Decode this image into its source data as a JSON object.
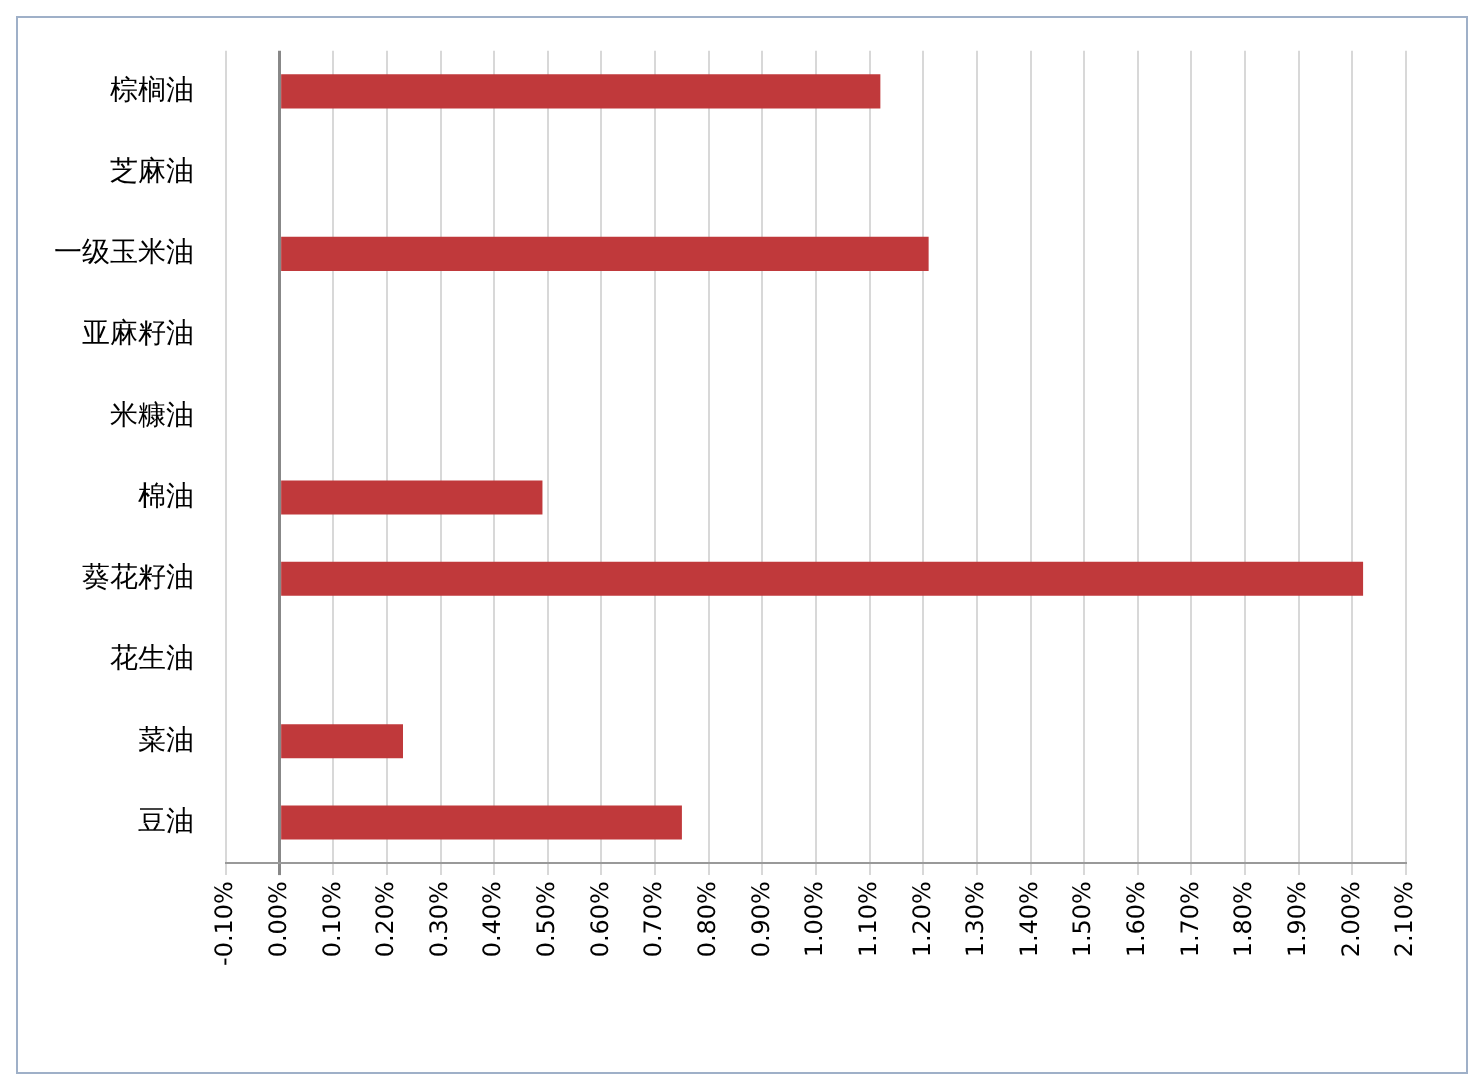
{
  "chart_data": {
    "type": "bar",
    "orientation": "horizontal",
    "categories": [
      "棕榈油",
      "芝麻油",
      "一级玉米油",
      "亚麻籽油",
      "米糠油",
      "棉油",
      "葵花籽油",
      "花生油",
      "菜油",
      "豆油"
    ],
    "values": [
      1.12,
      0,
      1.21,
      0,
      0,
      0.49,
      2.02,
      0,
      0.23,
      0.75
    ],
    "color": "#c0393b",
    "xlim": [
      -0.1,
      2.1
    ],
    "xticks": [
      {
        "value": -0.1,
        "label": "-0.10%"
      },
      {
        "value": 0,
        "label": "0.00%"
      },
      {
        "value": 0.1,
        "label": "0.10%"
      },
      {
        "value": 0.2,
        "label": "0.20%"
      },
      {
        "value": 0.3,
        "label": "0.30%"
      },
      {
        "value": 0.4,
        "label": "0.40%"
      },
      {
        "value": 0.5,
        "label": "0.50%"
      },
      {
        "value": 0.6,
        "label": "0.60%"
      },
      {
        "value": 0.7,
        "label": "0.70%"
      },
      {
        "value": 0.8,
        "label": "0.80%"
      },
      {
        "value": 0.9,
        "label": "0.90%"
      },
      {
        "value": 1.0,
        "label": "1.00%"
      },
      {
        "value": 1.1,
        "label": "1.10%"
      },
      {
        "value": 1.2,
        "label": "1.20%"
      },
      {
        "value": 1.3,
        "label": "1.30%"
      },
      {
        "value": 1.4,
        "label": "1.40%"
      },
      {
        "value": 1.5,
        "label": "1.50%"
      },
      {
        "value": 1.6,
        "label": "1.60%"
      },
      {
        "value": 1.7,
        "label": "1.70%"
      },
      {
        "value": 1.8,
        "label": "1.80%"
      },
      {
        "value": 1.9,
        "label": "1.90%"
      },
      {
        "value": 2.0,
        "label": "2.00%"
      },
      {
        "value": 2.1,
        "label": "2.10%"
      }
    ],
    "grid": "x"
  }
}
